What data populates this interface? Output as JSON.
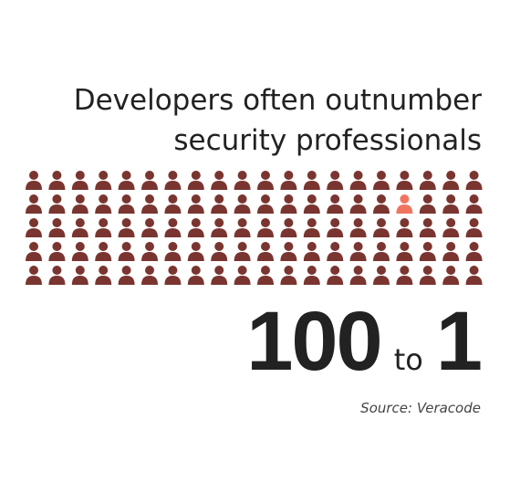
{
  "title": [
    "Developers often outnumber",
    "security professionals"
  ],
  "ratio": {
    "left": 100,
    "joiner": "to",
    "right": 1
  },
  "source": "Source: Veracode"
}
